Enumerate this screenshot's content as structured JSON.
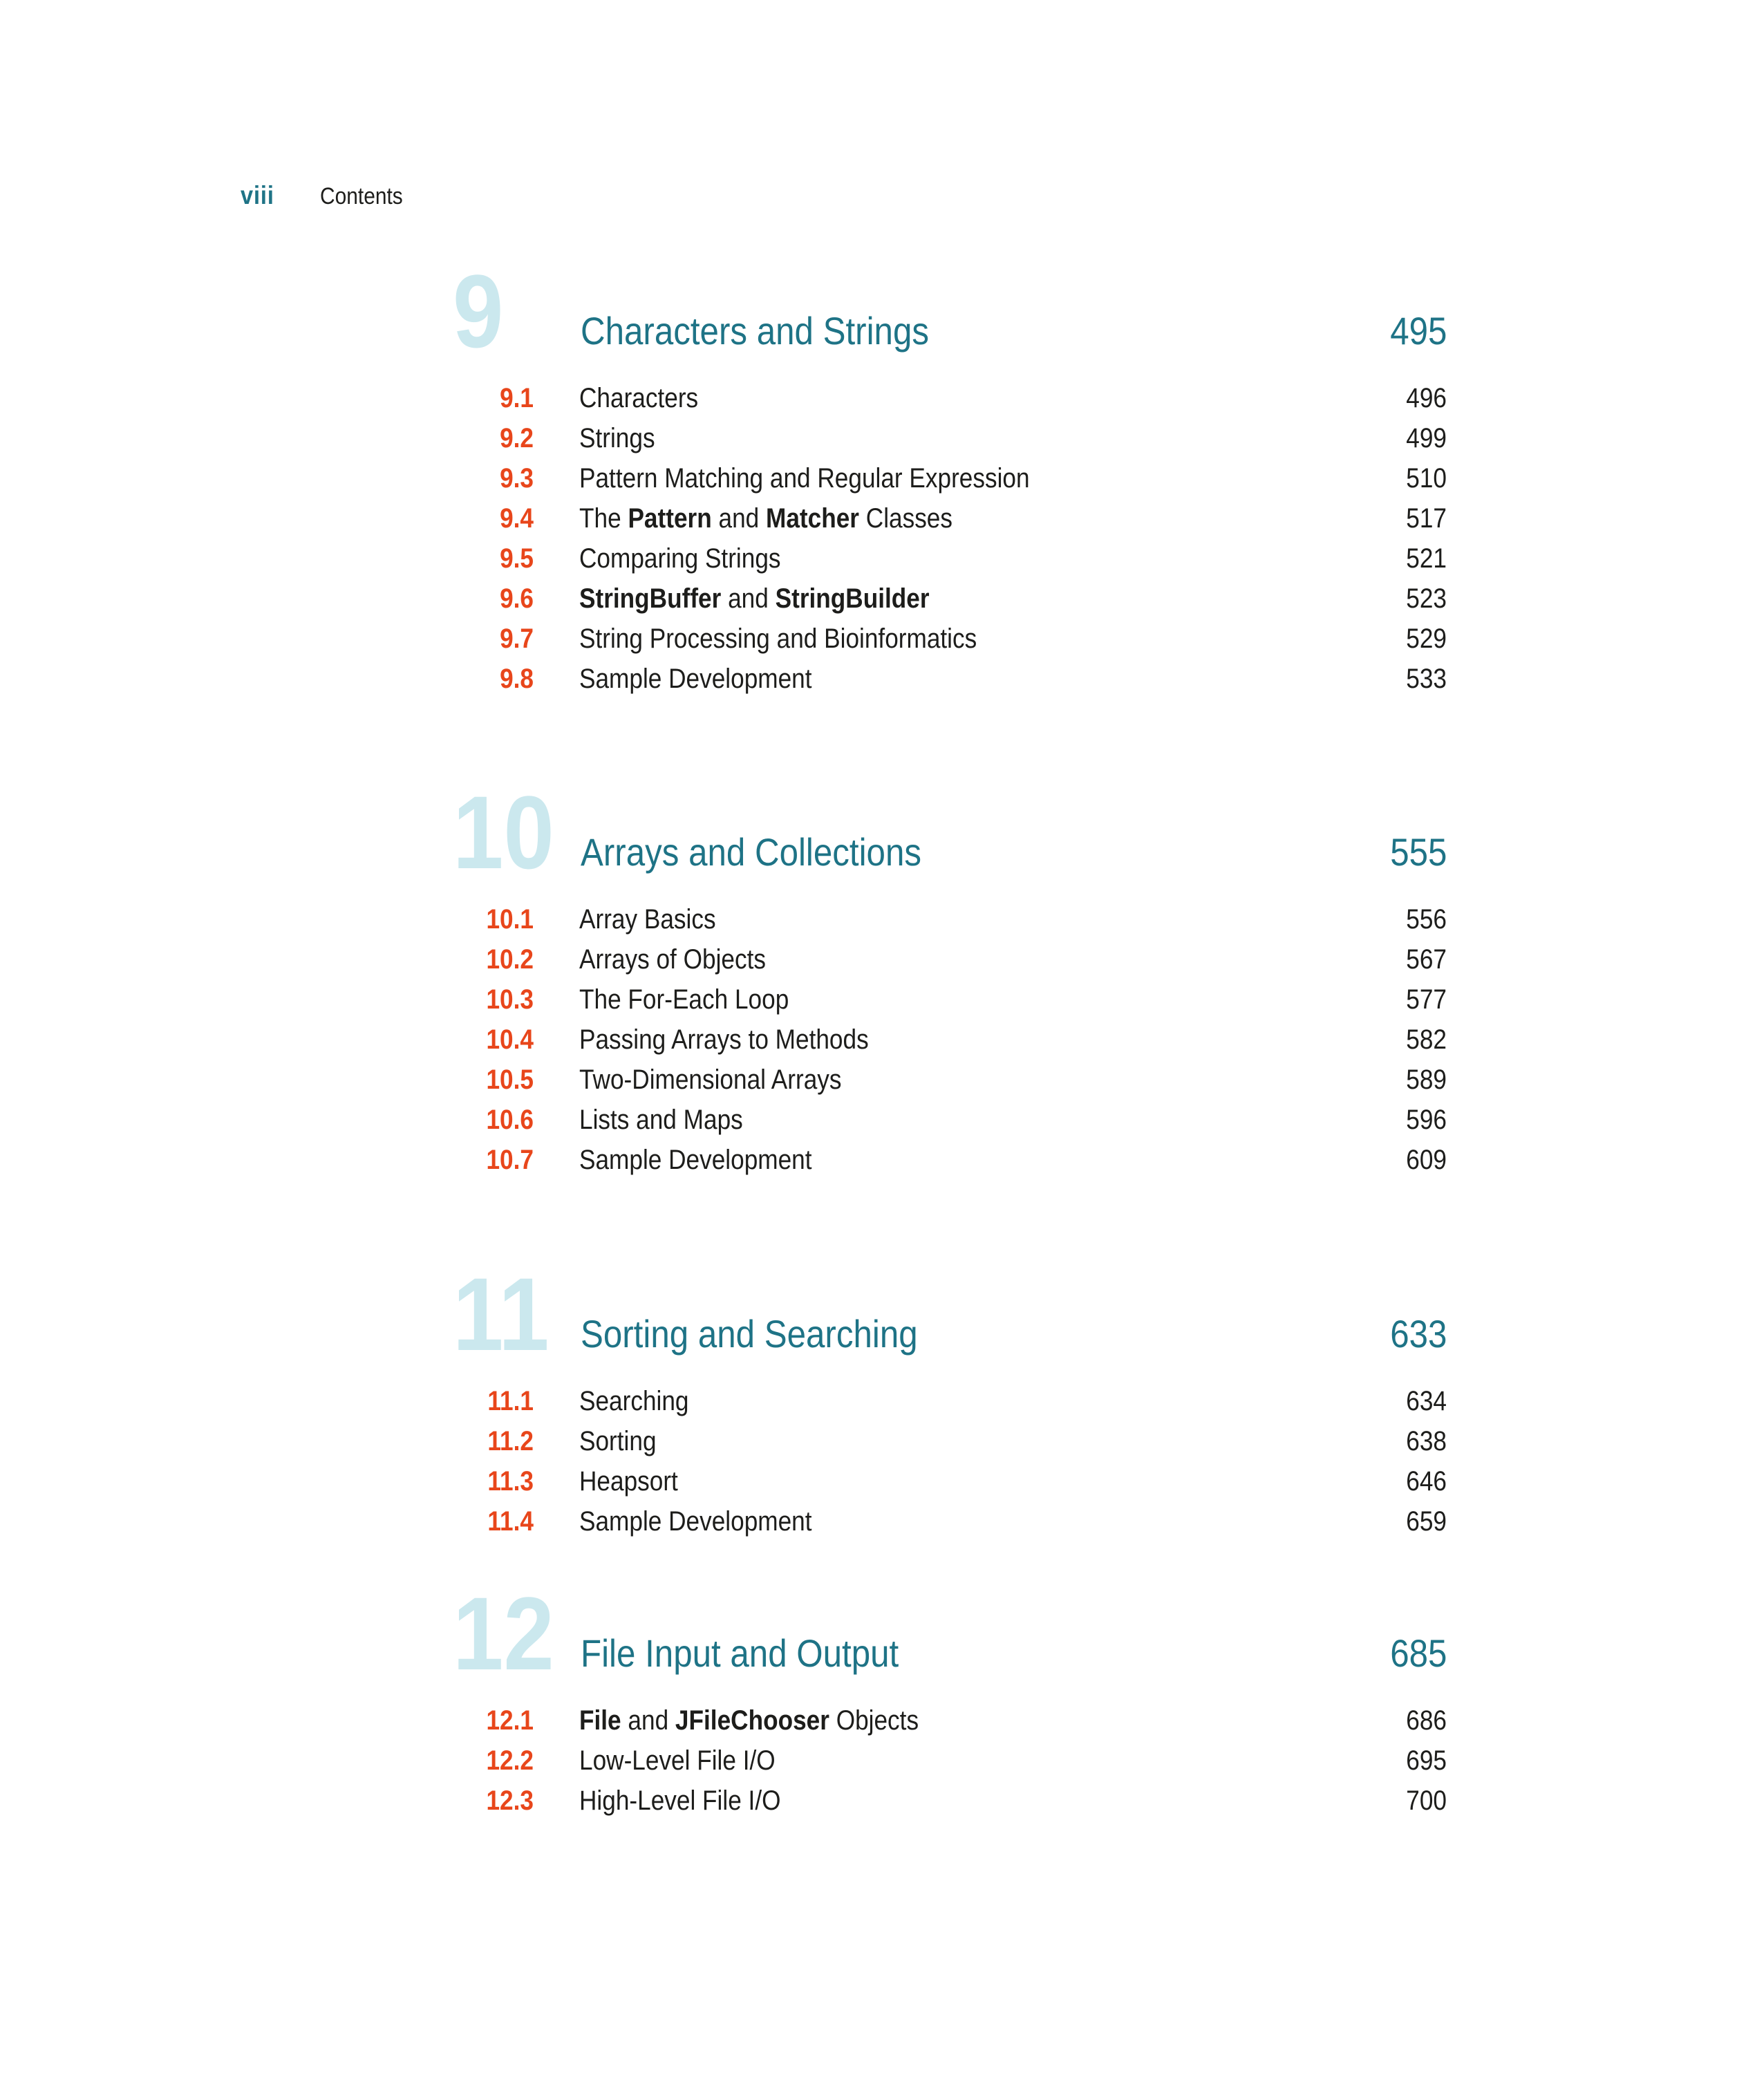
{
  "header": {
    "page_number": "viii",
    "title": "Contents"
  },
  "colors": {
    "teal": "#1e7386",
    "chapter_numeral_fill": "#cbe8ee",
    "section_number_red": "#e8461b",
    "text_ink": "#1d1d1b",
    "background": "#ffffff"
  },
  "chapters": [
    {
      "number": "9",
      "title": "Characters and Strings",
      "page": "495",
      "sections": [
        {
          "num": "9.1",
          "parts": [
            {
              "text": "Characters",
              "bold": false
            }
          ],
          "page": "496"
        },
        {
          "num": "9.2",
          "parts": [
            {
              "text": "Strings",
              "bold": false
            }
          ],
          "page": "499"
        },
        {
          "num": "9.3",
          "parts": [
            {
              "text": "Pattern Matching and Regular Expression",
              "bold": false
            }
          ],
          "page": "510"
        },
        {
          "num": "9.4",
          "parts": [
            {
              "text": "The ",
              "bold": false
            },
            {
              "text": "Pattern",
              "bold": true
            },
            {
              "text": " and ",
              "bold": false
            },
            {
              "text": "Matcher",
              "bold": true
            },
            {
              "text": " Classes",
              "bold": false
            }
          ],
          "page": "517"
        },
        {
          "num": "9.5",
          "parts": [
            {
              "text": "Comparing Strings",
              "bold": false
            }
          ],
          "page": "521"
        },
        {
          "num": "9.6",
          "parts": [
            {
              "text": "StringBuffer",
              "bold": true
            },
            {
              "text": " and ",
              "bold": false
            },
            {
              "text": "StringBuilder",
              "bold": true
            }
          ],
          "page": "523"
        },
        {
          "num": "9.7",
          "parts": [
            {
              "text": "String Processing and Bioinformatics",
              "bold": false
            }
          ],
          "page": "529"
        },
        {
          "num": "9.8",
          "parts": [
            {
              "text": "Sample Development",
              "bold": false
            }
          ],
          "page": "533"
        }
      ]
    },
    {
      "number": "10",
      "title": "Arrays and Collections",
      "page": "555",
      "sections": [
        {
          "num": "10.1",
          "parts": [
            {
              "text": "Array Basics",
              "bold": false
            }
          ],
          "page": "556"
        },
        {
          "num": "10.2",
          "parts": [
            {
              "text": "Arrays of Objects",
              "bold": false
            }
          ],
          "page": "567"
        },
        {
          "num": "10.3",
          "parts": [
            {
              "text": "The For-Each Loop",
              "bold": false
            }
          ],
          "page": "577"
        },
        {
          "num": "10.4",
          "parts": [
            {
              "text": "Passing Arrays to Methods",
              "bold": false
            }
          ],
          "page": "582"
        },
        {
          "num": "10.5",
          "parts": [
            {
              "text": "Two-Dimensional Arrays",
              "bold": false
            }
          ],
          "page": "589"
        },
        {
          "num": "10.6",
          "parts": [
            {
              "text": "Lists and Maps",
              "bold": false
            }
          ],
          "page": "596"
        },
        {
          "num": "10.7",
          "parts": [
            {
              "text": "Sample Development",
              "bold": false
            }
          ],
          "page": "609"
        }
      ]
    },
    {
      "number": "11",
      "title": "Sorting and Searching",
      "page": "633",
      "sections": [
        {
          "num": "11.1",
          "parts": [
            {
              "text": "Searching",
              "bold": false
            }
          ],
          "page": "634"
        },
        {
          "num": "11.2",
          "parts": [
            {
              "text": "Sorting",
              "bold": false
            }
          ],
          "page": "638"
        },
        {
          "num": "11.3",
          "parts": [
            {
              "text": "Heapsort",
              "bold": false
            }
          ],
          "page": "646"
        },
        {
          "num": "11.4",
          "parts": [
            {
              "text": "Sample Development",
              "bold": false
            }
          ],
          "page": "659"
        }
      ]
    },
    {
      "number": "12",
      "title": "File Input and Output",
      "page": "685",
      "sections": [
        {
          "num": "12.1",
          "parts": [
            {
              "text": "File",
              "bold": true
            },
            {
              "text": " and ",
              "bold": false
            },
            {
              "text": "JFileChooser",
              "bold": true
            },
            {
              "text": " Objects",
              "bold": false
            }
          ],
          "page": "686"
        },
        {
          "num": "12.2",
          "parts": [
            {
              "text": "Low-Level File I/O",
              "bold": false
            }
          ],
          "page": "695"
        },
        {
          "num": "12.3",
          "parts": [
            {
              "text": "High-Level File I/O",
              "bold": false
            }
          ],
          "page": "700"
        }
      ]
    }
  ]
}
